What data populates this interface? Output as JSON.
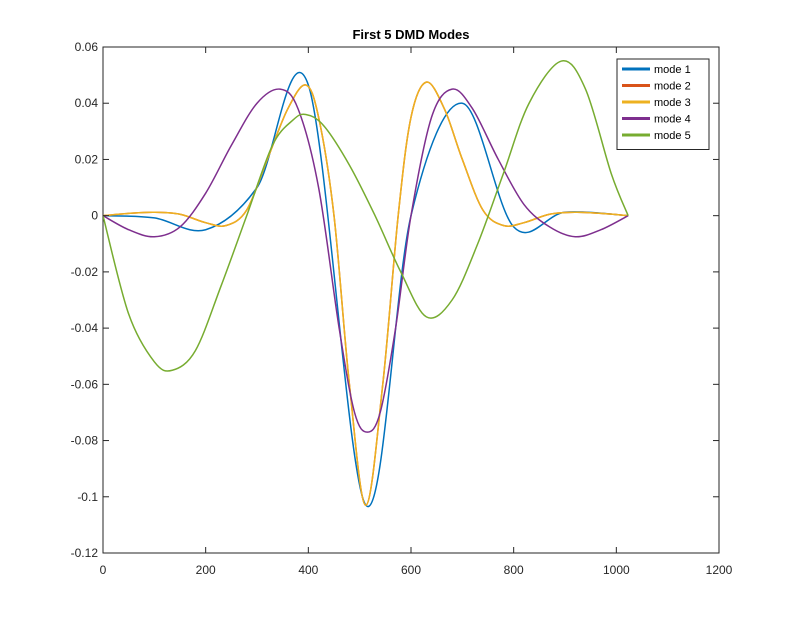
{
  "chart_data": {
    "type": "line",
    "title": "First 5 DMD Modes",
    "xlabel": "",
    "ylabel": "",
    "xlim": [
      0,
      1200
    ],
    "ylim": [
      -0.12,
      0.06
    ],
    "xticks": [
      0,
      200,
      400,
      600,
      800,
      1000,
      1200
    ],
    "xtick_labels": [
      "0",
      "200",
      "400",
      "600",
      "800",
      "1000",
      "1200"
    ],
    "yticks": [
      0.06,
      0.04,
      0.02,
      0,
      -0.02,
      -0.04,
      -0.06,
      -0.08,
      -0.1,
      -0.12
    ],
    "ytick_labels": [
      "0.06",
      "0.04",
      "0.02",
      "0",
      "-0.02",
      "-0.04",
      "-0.06",
      "-0.08",
      "-0.1",
      "-0.12"
    ],
    "grid": false,
    "legend_position": "top-right",
    "series": [
      {
        "name": "mode 1",
        "color": "#0072BD",
        "x": [
          0,
          100,
          200,
          300,
          400,
          512,
          600,
          700,
          800,
          900,
          1023
        ],
        "y": [
          0,
          -0.0008,
          -0.005,
          0.01,
          0.0465,
          -0.103,
          0.0,
          0.04,
          -0.004,
          0.0012,
          0
        ]
      },
      {
        "name": "mode 2",
        "color": "#D95319",
        "x": [
          0,
          50,
          100,
          150,
          200,
          240,
          280,
          320,
          360,
          395,
          420,
          450,
          480,
          512,
          545,
          575,
          600,
          630,
          665,
          700,
          740,
          780,
          820,
          870,
          920,
          970,
          1023
        ],
        "y": [
          0,
          0.0008,
          0.0012,
          0.0005,
          -0.0025,
          -0.0035,
          0.002,
          0.02,
          0.038,
          0.0465,
          0.035,
          0.0,
          -0.06,
          -0.103,
          -0.06,
          0.0,
          0.035,
          0.0475,
          0.038,
          0.02,
          0.002,
          -0.0035,
          -0.0025,
          0.0005,
          0.0012,
          0.0008,
          0
        ]
      },
      {
        "name": "mode 3",
        "color": "#EDB120",
        "x": [
          0,
          50,
          100,
          150,
          200,
          240,
          280,
          320,
          360,
          395,
          420,
          450,
          480,
          512,
          545,
          575,
          600,
          630,
          665,
          700,
          740,
          780,
          820,
          870,
          920,
          970,
          1023
        ],
        "y": [
          0,
          0.0008,
          0.0012,
          0.0005,
          -0.0025,
          -0.0035,
          0.002,
          0.02,
          0.038,
          0.0465,
          0.035,
          0.0,
          -0.06,
          -0.103,
          -0.06,
          0.0,
          0.035,
          0.0475,
          0.038,
          0.02,
          0.002,
          -0.0035,
          -0.0025,
          0.0005,
          0.0012,
          0.0008,
          0
        ]
      },
      {
        "name": "mode 4",
        "color": "#7E2F8E",
        "x": [
          0,
          50,
          100,
          150,
          200,
          250,
          300,
          345,
          380,
          420,
          460,
          490,
          515,
          540,
          570,
          600,
          640,
          680,
          720,
          770,
          820,
          870,
          920,
          970,
          1023
        ],
        "y": [
          0,
          -0.005,
          -0.0075,
          -0.004,
          0.008,
          0.025,
          0.04,
          0.045,
          0.038,
          0.01,
          -0.04,
          -0.07,
          -0.077,
          -0.07,
          -0.04,
          0.0,
          0.035,
          0.045,
          0.038,
          0.02,
          0.004,
          -0.004,
          -0.0075,
          -0.005,
          0
        ]
      },
      {
        "name": "mode 5",
        "color": "#77AC30",
        "x": [
          0,
          50,
          100,
          135,
          180,
          230,
          280,
          330,
          370,
          395,
          430,
          480,
          530,
          580,
          630,
          680,
          730,
          780,
          830,
          893,
          940,
          990,
          1023
        ],
        "y": [
          0,
          -0.035,
          -0.052,
          -0.055,
          -0.048,
          -0.025,
          0.0,
          0.025,
          0.034,
          0.036,
          0.032,
          0.018,
          0.0,
          -0.02,
          -0.036,
          -0.03,
          -0.01,
          0.015,
          0.04,
          0.055,
          0.045,
          0.015,
          0
        ]
      }
    ]
  }
}
